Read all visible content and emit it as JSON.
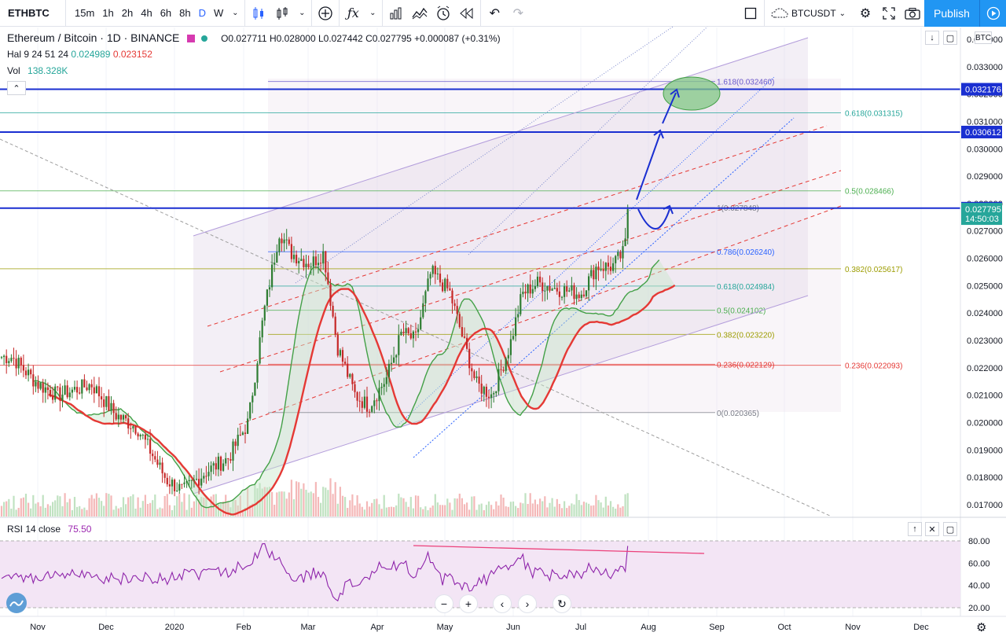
{
  "toolbar": {
    "symbol": "ETHBTC",
    "intervals": [
      "15m",
      "1h",
      "2h",
      "4h",
      "6h",
      "8h",
      "D",
      "W"
    ],
    "active_interval": "D",
    "compare_symbol": "BTCUSDT",
    "publish_label": "Publish"
  },
  "legend": {
    "title": "Ethereum / Bitcoin · 1D · BINANCE",
    "open": "O0.027711",
    "high": "H0.028000",
    "low": "L0.027442",
    "close": "C0.027795",
    "change": "+0.000087 (+0.31%)",
    "ichimoku_label": "Hal 9 24 51 24",
    "ichimoku_v1": "0.024989",
    "ichimoku_v2": "0.023152",
    "vol_label": "Vol",
    "vol_value": "138.328K"
  },
  "rsi": {
    "label": "RSI 14 close",
    "value": "75.50"
  },
  "price_axis": {
    "currency": "BTC",
    "ticks": [
      "0.034000",
      "0.033000",
      "0.032000",
      "0.031000",
      "0.030000",
      "0.029000",
      "0.028000",
      "0.027000",
      "0.026000",
      "0.025000",
      "0.024000",
      "0.023000",
      "0.022000",
      "0.021000",
      "0.020000",
      "0.019000",
      "0.018000",
      "0.017000"
    ],
    "badges": [
      {
        "value": "0.032176",
        "price": 0.032176,
        "color": "#1a2fd1"
      },
      {
        "value": "0.030612",
        "price": 0.030612,
        "color": "#1a2fd1"
      },
      {
        "value": "0.027831",
        "price": 0.027831,
        "color": "#1a2fd1"
      },
      {
        "value": "0.027795",
        "price": 0.027795,
        "color": "#26a69a"
      },
      {
        "value": "14:50:03",
        "price": 0.02745,
        "color": "#26a69a"
      }
    ]
  },
  "rsi_axis": {
    "ticks": [
      "80.00",
      "60.00",
      "40.00",
      "20.00"
    ]
  },
  "time_axis": {
    "labels": [
      "Nov",
      "Dec",
      "2020",
      "Feb",
      "Mar",
      "Apr",
      "May",
      "Jun",
      "Jul",
      "Aug",
      "Sep",
      "Oct",
      "Nov",
      "Dec"
    ]
  },
  "chart_data": {
    "type": "candlestick",
    "title": "Ethereum / Bitcoin · 1D · BINANCE",
    "ylim": [
      0.0165,
      0.0345
    ],
    "horizontal_levels": [
      {
        "price": 0.032176,
        "color": "#1a2fd1"
      },
      {
        "price": 0.030612,
        "color": "#1a2fd1"
      },
      {
        "price": 0.027831,
        "color": "#1a2fd1"
      }
    ],
    "fib_levels": [
      {
        "label": "1.618(0.032460)",
        "price": 0.03246,
        "color": "#6a5acd"
      },
      {
        "label": "0.618(0.031315)",
        "price": 0.031315,
        "color": "#26a69a"
      },
      {
        "label": "0.5(0.028466)",
        "price": 0.028466,
        "color": "#4caf50"
      },
      {
        "label": "1(0.027848)",
        "price": 0.027848,
        "color": "#787b86"
      },
      {
        "label": "0.786(0.026240)",
        "price": 0.02624,
        "color": "#2962ff"
      },
      {
        "label": "0.382(0.025617)",
        "price": 0.025617,
        "color": "#9c9c00"
      },
      {
        "label": "0.618(0.024984)",
        "price": 0.024984,
        "color": "#26a69a"
      },
      {
        "label": "0.5(0.024102)",
        "price": 0.024102,
        "color": "#4caf50"
      },
      {
        "label": "0.382(0.023220)",
        "price": 0.02322,
        "color": "#9c9c00"
      },
      {
        "label": "0.236(0.022129)",
        "price": 0.022129,
        "color": "#e53935"
      },
      {
        "label": "0.236(0.022093)",
        "price": 0.022093,
        "color": "#e53935"
      },
      {
        "label": "0(0.020365)",
        "price": 0.020365,
        "color": "#787b86"
      }
    ],
    "close_path": [
      [
        "Oct 20",
        0.0224
      ],
      [
        "Nov 1",
        0.0214
      ],
      [
        "Nov 10",
        0.021
      ],
      [
        "Nov 25",
        0.0214
      ],
      [
        "Dec 5",
        0.0203
      ],
      [
        "Dec 15",
        0.0198
      ],
      [
        "Dec 28",
        0.0179
      ],
      [
        "Jan 5",
        0.0175
      ],
      [
        "Jan 15",
        0.0182
      ],
      [
        "Jan 25",
        0.0187
      ],
      [
        "Feb 3",
        0.02
      ],
      [
        "Feb 10",
        0.024
      ],
      [
        "Feb 17",
        0.027
      ],
      [
        "Feb 22",
        0.0262
      ],
      [
        "Mar 2",
        0.0258
      ],
      [
        "Mar 8",
        0.0262
      ],
      [
        "Mar 14",
        0.0228
      ],
      [
        "Mar 22",
        0.021
      ],
      [
        "Mar 28",
        0.0206
      ],
      [
        "Apr 5",
        0.0216
      ],
      [
        "Apr 12",
        0.0233
      ],
      [
        "Apr 18",
        0.023
      ],
      [
        "Apr 25",
        0.0255
      ],
      [
        "May 3",
        0.0248
      ],
      [
        "May 10",
        0.0228
      ],
      [
        "May 15",
        0.0214
      ],
      [
        "May 22",
        0.021
      ],
      [
        "May 30",
        0.0228
      ],
      [
        "Jun 5",
        0.0247
      ],
      [
        "Jun 12",
        0.0251
      ],
      [
        "Jun 20",
        0.0249
      ],
      [
        "Jul 1",
        0.0247
      ],
      [
        "Jul 8",
        0.0257
      ],
      [
        "Jul 15",
        0.0257
      ],
      [
        "Jul 20",
        0.0262
      ],
      [
        "Jul 24",
        0.027795
      ]
    ]
  }
}
